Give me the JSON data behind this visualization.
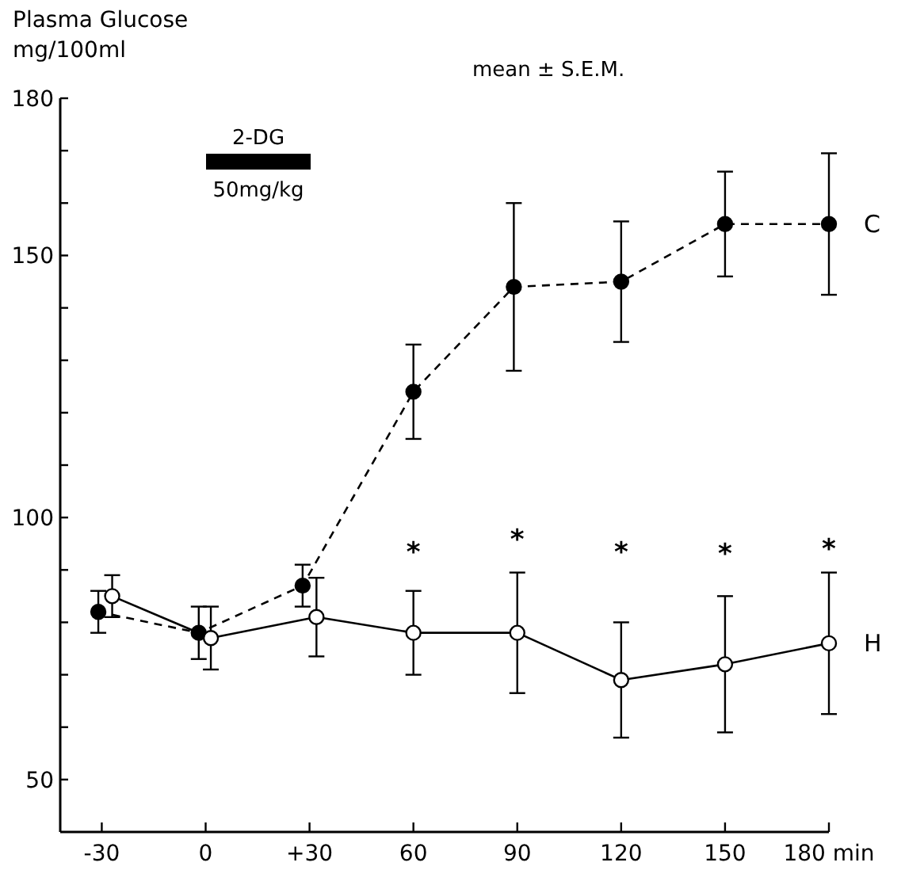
{
  "chart_data": {
    "type": "line",
    "title": "mean ± S.E.M.",
    "ylabel": "Plasma Glucose\nmg/100ml",
    "xlim": [
      -42,
      180
    ],
    "xticks": [
      {
        "value": -30,
        "label": "-30"
      },
      0,
      {
        "value": 30,
        "label": "+30"
      },
      60,
      90,
      120,
      150,
      {
        "value": 180,
        "label": "180 min"
      }
    ],
    "ylim": [
      40,
      180
    ],
    "yticks": [
      {
        "value": 50,
        "label": "50"
      },
      {
        "value": 60,
        "label": null
      },
      {
        "value": 70,
        "label": null
      },
      {
        "value": 80,
        "label": null
      },
      {
        "value": 90,
        "label": null
      },
      {
        "value": 100,
        "label": "100"
      },
      {
        "value": 110,
        "label": null
      },
      {
        "value": 120,
        "label": null
      },
      {
        "value": 130,
        "label": null
      },
      {
        "value": 140,
        "label": null
      },
      {
        "value": 150,
        "label": "150"
      },
      {
        "value": 160,
        "label": null
      },
      {
        "value": 170,
        "label": null
      },
      {
        "value": 180,
        "label": "180"
      }
    ],
    "grid": false,
    "marker": "circle",
    "series": [
      {
        "name": "C",
        "color": "#000000",
        "line_style": "dashed",
        "x": [
          -31,
          -2,
          28,
          60,
          89,
          120,
          150,
          180
        ],
        "values": [
          82,
          78,
          87,
          124,
          144,
          145,
          156,
          156
        ],
        "errors": [
          4,
          5,
          4,
          9,
          16,
          11.5,
          10,
          13.5
        ]
      },
      {
        "name": "H",
        "color": "#000000",
        "line_style": "solid",
        "x": [
          -27,
          1.5,
          32,
          60,
          90,
          120,
          150,
          180
        ],
        "values": [
          85,
          77,
          81,
          78,
          78,
          69,
          72,
          76
        ],
        "errors": [
          4,
          6,
          7.5,
          8,
          11.5,
          11,
          13,
          13.5
        ]
      }
    ],
    "annotations": [
      "2-DG",
      "50mg/kg",
      "*",
      "*",
      "*",
      "*",
      "*"
    ]
  }
}
